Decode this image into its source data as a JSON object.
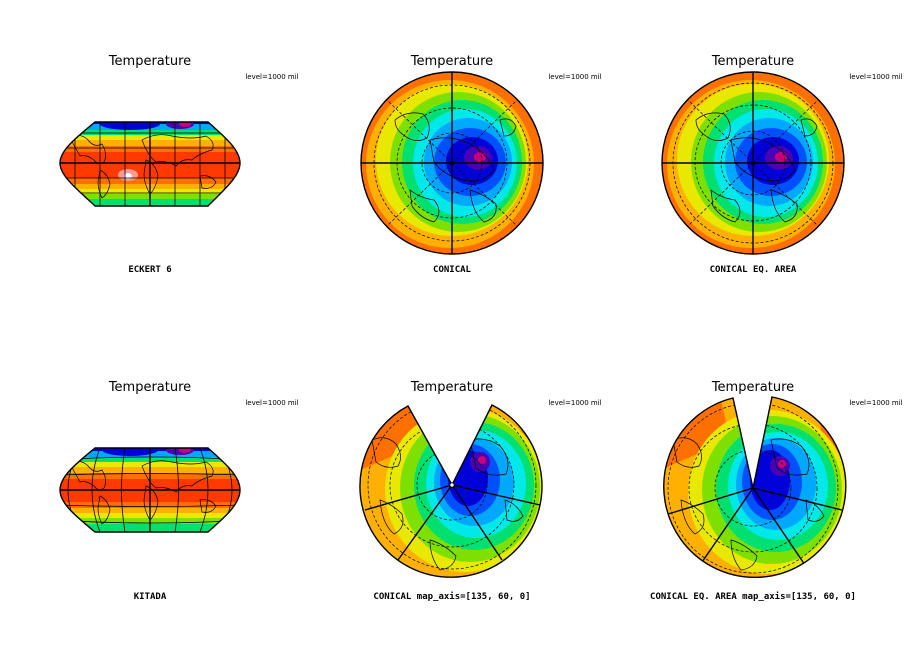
{
  "panels": [
    {
      "title": "Temperature",
      "level_label": "level=1000 mil",
      "caption": "ECKERT 6",
      "projection": "eckert6"
    },
    {
      "title": "Temperature",
      "level_label": "level=1000 mil",
      "caption": "CONICAL",
      "projection": "polar"
    },
    {
      "title": "Temperature",
      "level_label": "level=1000 mil",
      "caption": "CONICAL EQ. AREA",
      "projection": "polar"
    },
    {
      "title": "Temperature",
      "level_label": "level=1000 mil",
      "caption": "KITADA",
      "projection": "kitada"
    },
    {
      "title": "Temperature",
      "level_label": "level=1000 mil",
      "caption": "CONICAL  map_axis=[135, 60, 0]",
      "projection": "cone"
    },
    {
      "title": "Temperature",
      "level_label": "level=1000 mil",
      "caption": "CONICAL EQ. AREA  map_axis=[135, 60, 0]",
      "projection": "cone"
    }
  ],
  "colors": {
    "palette": [
      "#c9007a",
      "#4a00b4",
      "#0000d8",
      "#0050ff",
      "#00a8ff",
      "#00e8e8",
      "#00e070",
      "#7ee000",
      "#e8e800",
      "#ffb000",
      "#ff7000",
      "#ff3a00",
      "#ff9a9a",
      "#ffffff"
    ],
    "grid": "#000000",
    "background": "#ffffff"
  }
}
